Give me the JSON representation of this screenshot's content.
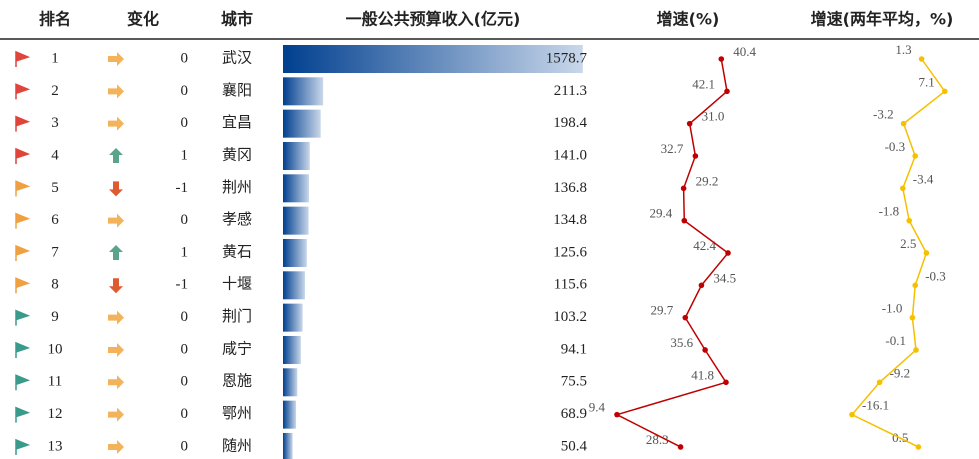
{
  "headers": [
    "排名",
    "变化",
    "城市",
    "一般公共预算收入(亿元)",
    "增速(%)",
    "增速(两年平均，%)"
  ],
  "rank": [
    1,
    2,
    3,
    4,
    5,
    6,
    7,
    8,
    9,
    10,
    11,
    12,
    13
  ],
  "change": [
    0,
    0,
    0,
    1,
    -1,
    0,
    1,
    -1,
    0,
    0,
    0,
    0,
    0
  ],
  "city": [
    "武汉",
    "襄阳",
    "宜昌",
    "黄冈",
    "荆州",
    "孝感",
    "黄石",
    "十堰",
    "荆门",
    "咸宁",
    "恩施",
    "鄂州",
    "随州"
  ],
  "revenue": {
    "values": [
      1578.7,
      211.3,
      198.4,
      141.0,
      136.8,
      134.8,
      125.6,
      115.6,
      103.2,
      94.1,
      75.5,
      68.9,
      50.4
    ],
    "value_labels": [
      "1578.7",
      "211.3",
      "198.4",
      "141.0",
      "136.8",
      "134.8",
      "125.6",
      "115.6",
      "103.2",
      "94.1",
      "75.5",
      "68.9",
      "50.4"
    ]
  },
  "growth": {
    "values": [
      40.4,
      42.1,
      31.0,
      32.7,
      29.2,
      29.4,
      42.4,
      34.5,
      29.7,
      35.6,
      41.8,
      9.4,
      28.3
    ],
    "value_labels": [
      "40.4",
      "42.1",
      "31.0",
      "32.7",
      "29.2",
      "29.4",
      "42.4",
      "34.5",
      "29.7",
      "35.6",
      "41.8",
      "9.4",
      "28.3"
    ],
    "color": "#c00000"
  },
  "growth2": {
    "values": [
      1.3,
      7.1,
      -3.2,
      -0.3,
      -3.4,
      -1.8,
      2.5,
      -0.3,
      -1.0,
      -0.1,
      -9.2,
      -16.1,
      0.5
    ],
    "value_labels": [
      "1.3",
      "7.1",
      "-3.2",
      "-0.3",
      "-3.4",
      "-1.8",
      "2.5",
      "-0.3",
      "-1.0",
      "-0.1",
      "-9.2",
      "-16.1",
      "0.5"
    ],
    "color": "#f5c000"
  }
}
